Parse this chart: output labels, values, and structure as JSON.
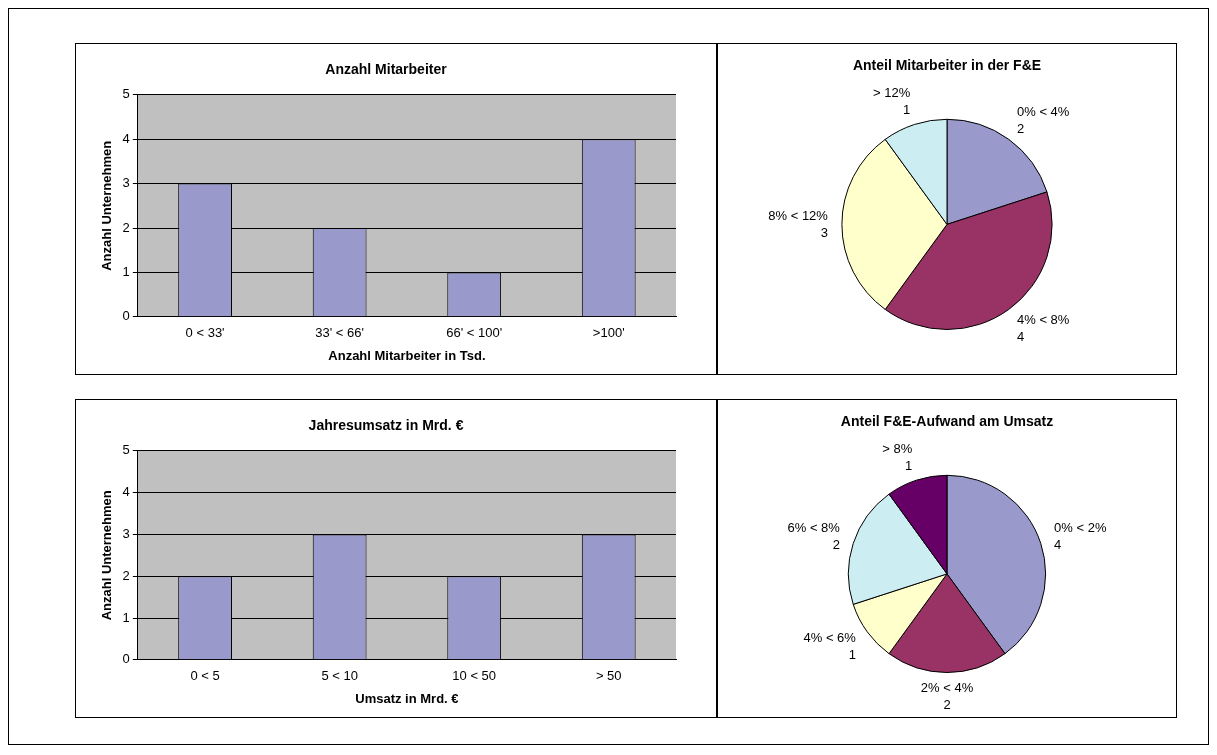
{
  "chart_data": [
    {
      "type": "bar",
      "title": "Anzahl Mitarbeiter",
      "xlabel": "Anzahl Mitarbeiter in Tsd.",
      "ylabel": "Anzahl Unternehmen",
      "categories": [
        "0 < 33'",
        "33' < 66'",
        "66' < 100'",
        ">100'"
      ],
      "values": [
        3,
        2,
        1,
        4
      ],
      "color": "#9999cc",
      "ylim": [
        0,
        5
      ],
      "yticks": [
        0,
        1,
        2,
        3,
        4,
        5
      ],
      "grid": "y"
    },
    {
      "type": "pie",
      "title": "Anteil Mitarbeiter in der F&E",
      "categories": [
        "0% < 4%",
        "4% < 8%",
        "8% < 12%",
        "> 12%"
      ],
      "values": [
        2,
        4,
        3,
        1
      ],
      "colors": [
        "#9999cc",
        "#993366",
        "#ffffcc",
        "#cceef2"
      ],
      "data_labels": true
    },
    {
      "type": "bar",
      "title": "Jahresumsatz in Mrd. €",
      "xlabel": "Umsatz in Mrd. €",
      "ylabel": "Anzahl Unternehmen",
      "categories": [
        "0 < 5",
        "5 < 10",
        "10 < 50",
        "> 50"
      ],
      "values": [
        2,
        3,
        2,
        3
      ],
      "color": "#9999cc",
      "ylim": [
        0,
        5
      ],
      "yticks": [
        0,
        1,
        2,
        3,
        4,
        5
      ],
      "grid": "y"
    },
    {
      "type": "pie",
      "title": "Anteil F&E-Aufwand am Umsatz",
      "categories": [
        "0% < 2%",
        "2% < 4%",
        "4% < 6%",
        "6% < 8%",
        "> 8%"
      ],
      "values": [
        4,
        2,
        1,
        2,
        1
      ],
      "colors": [
        "#9999cc",
        "#993366",
        "#ffffcc",
        "#cceef2",
        "#660066"
      ],
      "data_labels": true
    }
  ]
}
